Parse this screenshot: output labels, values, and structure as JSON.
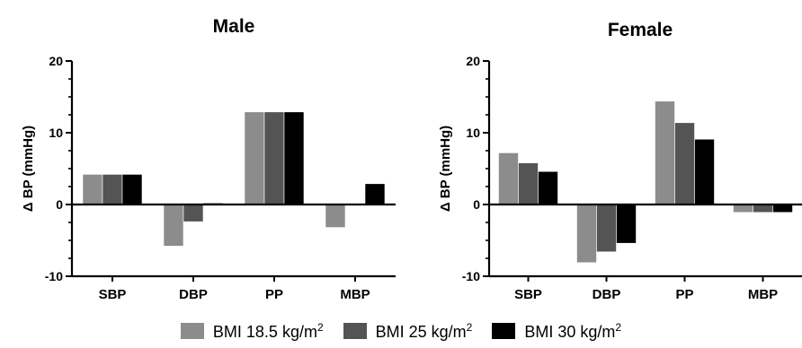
{
  "chart_data": [
    {
      "type": "bar",
      "title": "Male",
      "ylabel": "Δ BP (mmHg)",
      "xlabel": "",
      "categories": [
        "SBP",
        "DBP",
        "PP",
        "MBP"
      ],
      "ylim": [
        -10,
        20
      ],
      "yticks": [
        -10,
        0,
        10,
        20
      ],
      "series": [
        {
          "name": "BMI 18.5 kg/m2",
          "values": [
            4.2,
            -5.8,
            12.9,
            -3.2
          ],
          "color": "#8c8c8c"
        },
        {
          "name": "BMI 25 kg/m2",
          "values": [
            4.2,
            -2.4,
            12.9,
            0.0
          ],
          "color": "#545454"
        },
        {
          "name": "BMI 30 kg/m2",
          "values": [
            4.2,
            0.2,
            12.9,
            2.9
          ],
          "color": "#000000"
        }
      ]
    },
    {
      "type": "bar",
      "title": "Female",
      "ylabel": "Δ BP (mmHg)",
      "xlabel": "",
      "categories": [
        "SBP",
        "DBP",
        "PP",
        "MBP"
      ],
      "ylim": [
        -10,
        20
      ],
      "yticks": [
        -10,
        0,
        10,
        20
      ],
      "series": [
        {
          "name": "BMI 18.5 kg/m2",
          "values": [
            7.2,
            -8.1,
            14.4,
            -1.1
          ],
          "color": "#8c8c8c"
        },
        {
          "name": "BMI 25 kg/m2",
          "values": [
            5.8,
            -6.6,
            11.4,
            -1.1
          ],
          "color": "#545454"
        },
        {
          "name": "BMI 30 kg/m2",
          "values": [
            4.6,
            -5.4,
            9.1,
            -1.1
          ],
          "color": "#000000"
        }
      ]
    }
  ],
  "legend": {
    "items": [
      {
        "label": "BMI 18.5 kg/m",
        "sup": "2",
        "color": "#8c8c8c"
      },
      {
        "label": "BMI 25 kg/m",
        "sup": "2",
        "color": "#545454"
      },
      {
        "label": "BMI 30 kg/m",
        "sup": "2",
        "color": "#000000"
      }
    ]
  }
}
